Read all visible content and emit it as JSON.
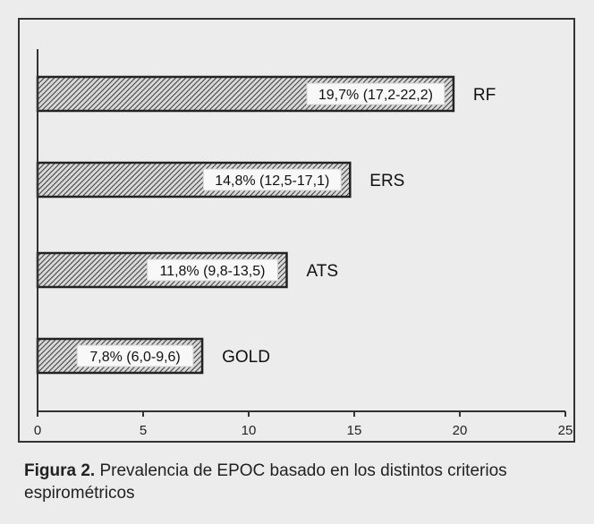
{
  "chart_data": {
    "type": "bar",
    "orientation": "horizontal",
    "categories": [
      "RF",
      "ERS",
      "ATS",
      "GOLD"
    ],
    "values": [
      19.7,
      14.8,
      11.8,
      7.8
    ],
    "data_labels": [
      "19,7% (17,2-22,2)",
      "14,8% (12,5-17,1)",
      "11,8% (9,8-13,5)",
      "7,8% (6,0-9,6)"
    ],
    "xlim": [
      0,
      25
    ],
    "x_ticks": [
      "0",
      "5",
      "10",
      "15",
      "20",
      "25"
    ],
    "grid": false,
    "bar_fill": "hatched"
  },
  "caption": {
    "label": "Figura 2.",
    "text": " Prevalencia de EPOC basado en los distintos criterios espirométricos"
  }
}
